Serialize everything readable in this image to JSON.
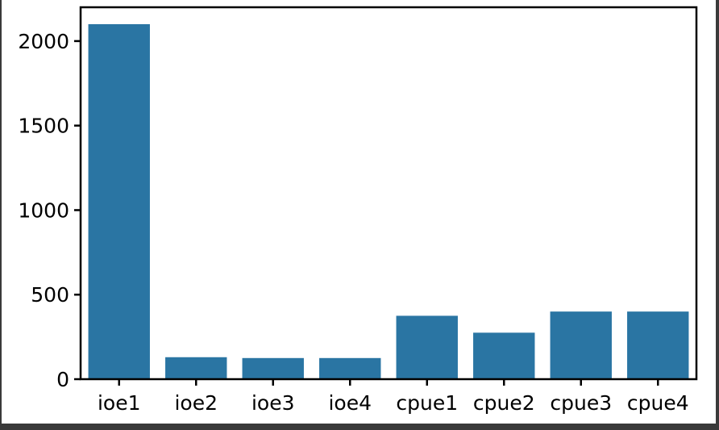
{
  "chart_data": {
    "type": "bar",
    "categories": [
      "ioe1",
      "ioe2",
      "ioe3",
      "ioe4",
      "cpue1",
      "cpue2",
      "cpue3",
      "cpue4"
    ],
    "values": [
      2100,
      130,
      125,
      125,
      375,
      275,
      400,
      400
    ],
    "title": "",
    "xlabel": "",
    "ylabel": "",
    "ylim": [
      0,
      2200
    ],
    "yticks": [
      0,
      500,
      1000,
      1500,
      2000
    ],
    "grid": false,
    "legend": "none",
    "bar_color": "#2a75a3"
  }
}
